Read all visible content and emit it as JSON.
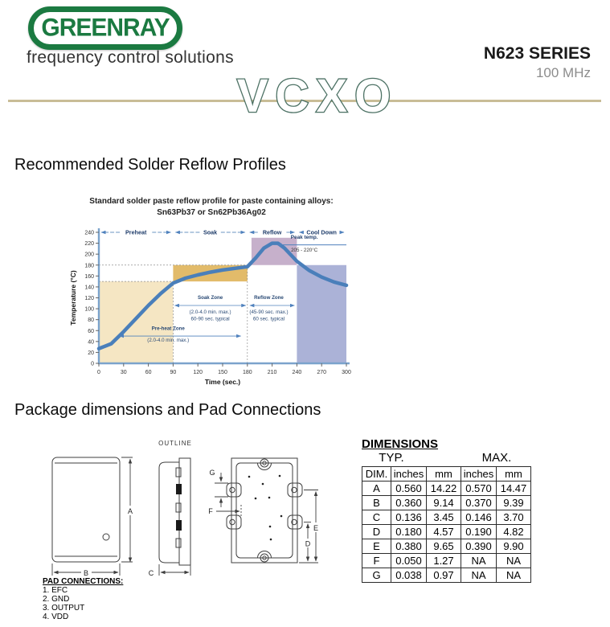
{
  "header": {
    "logo_text": "GREENRAY",
    "tagline": "frequency control solutions",
    "series": "N623 SERIES",
    "frequency": "100 MHz",
    "watermark": "VCXO",
    "accent_line_color": "#c9bd97",
    "logo_green": "#1b7a41"
  },
  "sections": {
    "reflow_heading": "Recommended Solder Reflow Profiles",
    "package_heading": "Package dimensions and Pad Connections"
  },
  "chart_data": {
    "type": "line",
    "title_line1": "Standard solder paste reflow profile for paste containing alloys:",
    "title_line2": "Sn63Pb37 or Sn62Pb36Ag02",
    "xlabel": "Time (sec.)",
    "ylabel": "Temperature (°C)",
    "xlim": [
      0,
      300
    ],
    "xtick_step": 30,
    "ylim": [
      0,
      240
    ],
    "ytick_step": 20,
    "grid": false,
    "curve_color": "#4a7fba",
    "axis_color": "#7ba3cc",
    "phases": [
      {
        "label": "Preheat",
        "t0": 0,
        "t1": 90
      },
      {
        "label": "Soak",
        "t0": 90,
        "t1": 180
      },
      {
        "label": "Reflow",
        "t0": 180,
        "t1": 240
      },
      {
        "label": "Cool Down",
        "t0": 240,
        "t1": 300
      }
    ],
    "zones": [
      {
        "name": "preheat",
        "t0": 0,
        "t1": 90,
        "T0": 0,
        "T1": 150,
        "color": "#f5e6c3"
      },
      {
        "name": "soak",
        "t0": 90,
        "t1": 180,
        "T0": 150,
        "T1": 180,
        "color": "#e2bb6a"
      },
      {
        "name": "reflow",
        "t0": 185,
        "t1": 240,
        "T0": 180,
        "T1": 230,
        "color": "#c6b0cb"
      },
      {
        "name": "cooldown",
        "t0": 240,
        "t1": 300,
        "T0": 0,
        "T1": 180,
        "color": "#abb2d7"
      }
    ],
    "guides": [
      {
        "type": "h",
        "T": 150,
        "t0": 0,
        "t1": 90
      },
      {
        "type": "h",
        "T": 180,
        "t0": 0,
        "t1": 185
      },
      {
        "type": "v",
        "t": 90,
        "T0": 0,
        "T1": 150
      },
      {
        "type": "v",
        "t": 180,
        "T0": 0,
        "T1": 180
      }
    ],
    "curve": [
      [
        0,
        27
      ],
      [
        15,
        36
      ],
      [
        30,
        58
      ],
      [
        45,
        82
      ],
      [
        60,
        106
      ],
      [
        75,
        128
      ],
      [
        90,
        147
      ],
      [
        105,
        156
      ],
      [
        120,
        162
      ],
      [
        135,
        167
      ],
      [
        150,
        171
      ],
      [
        165,
        174
      ],
      [
        180,
        177
      ],
      [
        190,
        193
      ],
      [
        200,
        211
      ],
      [
        210,
        220
      ],
      [
        217,
        220
      ],
      [
        225,
        211
      ],
      [
        240,
        187
      ],
      [
        255,
        170
      ],
      [
        270,
        158
      ],
      [
        285,
        149
      ],
      [
        300,
        143
      ]
    ],
    "annotations": [
      {
        "name": "soak-zone",
        "t": 135,
        "arrow": {
          "t0": 92,
          "t1": 178,
          "T": 106
        },
        "lines": [
          {
            "text": "Soak Zone",
            "T": 118,
            "bold": true
          },
          {
            "text": "(2.0-4.0 min. max.)",
            "T": 91
          },
          {
            "text": "60-90 sec. typical",
            "T": 79
          }
        ]
      },
      {
        "name": "reflow-zone",
        "t": 206,
        "arrow": {
          "t0": 183,
          "t1": 237,
          "T": 106
        },
        "lines": [
          {
            "text": "Reflow Zone",
            "T": 118,
            "bold": true
          },
          {
            "text": "(45-90 sec. max.)",
            "T": 91
          },
          {
            "text": "60 sec. typical",
            "T": 79
          }
        ]
      },
      {
        "name": "preheat-zone",
        "t": 84,
        "arrow": {
          "t0": 25,
          "t1": 172,
          "T": 50
        },
        "lines": [
          {
            "text": "Pre-heat Zone",
            "T": 61,
            "bold": true
          },
          {
            "text": "(2.0-4.0 min. max.)",
            "T": 40
          }
        ]
      }
    ],
    "peak": {
      "label": "Peak temp.",
      "range": "205 - 220°C",
      "arrow": {
        "t0": 216,
        "t1": 300,
        "T": 217
      },
      "text_t": 249,
      "label_T": 228,
      "range_T": 205
    }
  },
  "drawings": {
    "outline_label": "OUTLINE",
    "dims": {
      "a": "A",
      "b": "B",
      "c": "C",
      "d": "D",
      "e": "E",
      "f": "F",
      "g": "G"
    }
  },
  "dimensions_table": {
    "title": "DIMENSIONS",
    "group_headers": [
      "TYP.",
      "MAX."
    ],
    "columns": [
      "DIM.",
      "inches",
      "mm",
      "inches",
      "mm"
    ],
    "rows": [
      [
        "A",
        "0.560",
        "14.22",
        "0.570",
        "14.47"
      ],
      [
        "B",
        "0.360",
        "9.14",
        "0.370",
        "9.39"
      ],
      [
        "C",
        "0.136",
        "3.45",
        "0.146",
        "3.70"
      ],
      [
        "D",
        "0.180",
        "4.57",
        "0.190",
        "4.82"
      ],
      [
        "E",
        "0.380",
        "9.65",
        "0.390",
        "9.90"
      ],
      [
        "F",
        "0.050",
        "1.27",
        "NA",
        "NA"
      ],
      [
        "G",
        "0.038",
        "0.97",
        "NA",
        "NA"
      ]
    ]
  },
  "pad_connections": {
    "title": "PAD CONNECTIONS:",
    "items": [
      "1. EFC",
      "2. GND",
      "3. OUTPUT",
      "4. VDD"
    ]
  }
}
